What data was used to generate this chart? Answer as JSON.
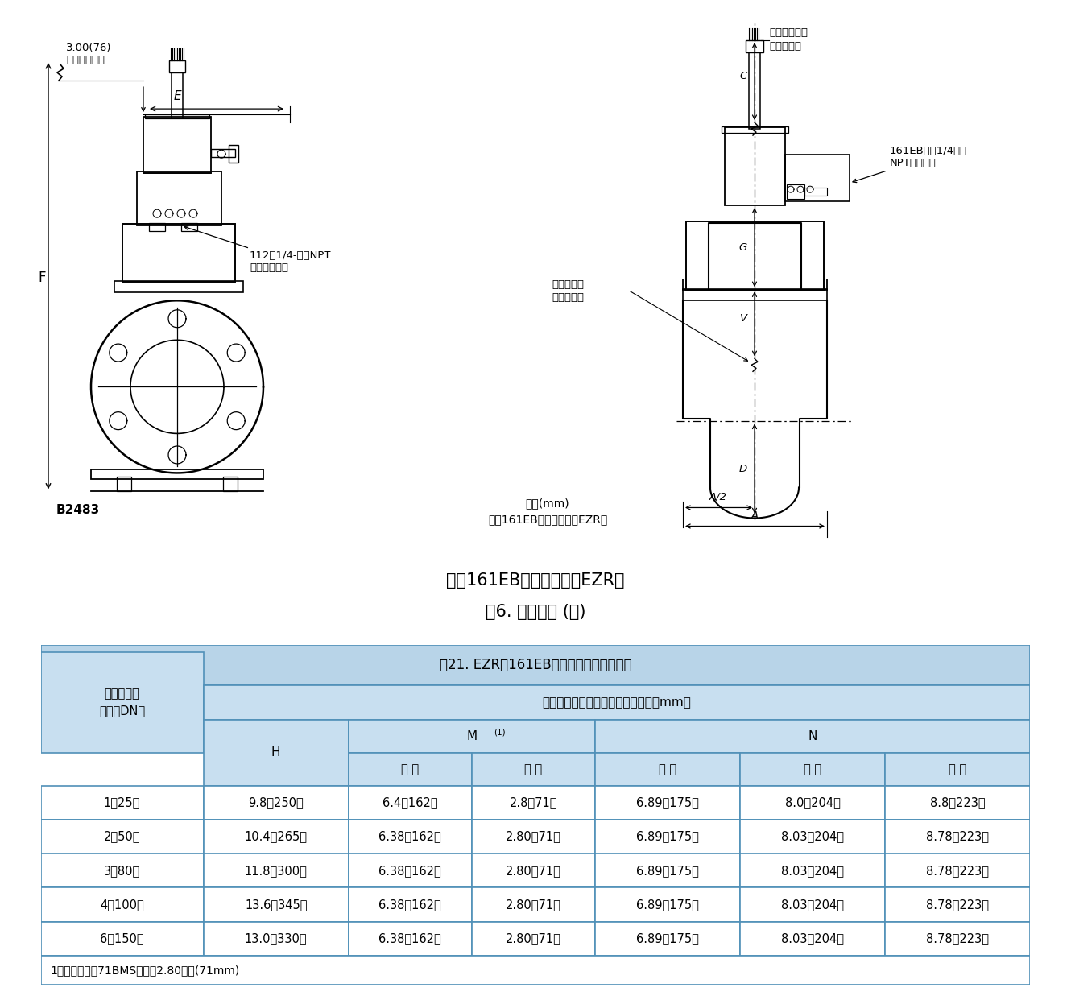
{
  "title1": "带有161EB系列指挥器的EZR型",
  "title2": "图6. 外形尺寸 (续)",
  "table_title": "表21. EZR型161EB系列指挥器的外形尺寸",
  "col_header1": "带有快速关闭阀的外形尺寸，英寸（mm）",
  "col_left_line1": "阀体尺寸，",
  "col_left_line2": "英寸（DN）",
  "col_H": "H",
  "col_M": "M",
  "col_M_sup": "(1)",
  "col_N": "N",
  "sub_cols": [
    "皮 膜",
    "活 塞",
    "皮 膜",
    "活 塞",
    "风 箱"
  ],
  "rows": [
    [
      "1（25）",
      "9.8（250）",
      "6.4（162）",
      "2.8（71）",
      "6.89（175）",
      "8.0（204）",
      "8.8（223）"
    ],
    [
      "2（50）",
      "10.4（265）",
      "6.38（162）",
      "2.80（71）",
      "6.89（175）",
      "8.03（204）",
      "8.78（223）"
    ],
    [
      "3（80）",
      "11.8（300）",
      "6.38（162）",
      "2.80（71）",
      "6.89（175）",
      "8.03（204）",
      "8.78（223）"
    ],
    [
      "4（100）",
      "13.6（345）",
      "6.38（162）",
      "2.80（71）",
      "6.89（175）",
      "8.03（204）",
      "8.78（223）"
    ],
    [
      "6（150）",
      "13.0（330）",
      "6.38（162）",
      "2.80（71）",
      "6.89（175）",
      "8.03（204）",
      "8.78（223）"
    ]
  ],
  "footnote": "1、带有皮膜的71BMS型具有2.80英寸(71mm)",
  "bg_color": "#c8dff0",
  "header_bg": "#b8d4e8",
  "border_color": "#5090b8",
  "text_color": "#000000",
  "image_bg": "#ffffff",
  "diagram_note1": "英寸(mm)",
  "diagram_note2": "带有161EB系列指挥器的EZR型",
  "label_3_00": "3.00(76)",
  "label_lid": "盖密卸装间隙",
  "label_E": "E",
  "label_F": "F",
  "label_B2483": "B2483",
  "label_112": "112型1/4-英寸NPT\n上游供应连接",
  "label_C": "C",
  "label_stroke": "行程指示器端",
  "label_lid2": "盖卸装间隙",
  "label_161EB": "161EB系列1/4英寸\nNPT下游连接",
  "label_G": "G",
  "label_main_valve1": "主阀调节装",
  "label_main_valve2": "置卸装间隙",
  "label_V": "V",
  "label_D": "D",
  "label_A2": "A/2",
  "label_A": "A"
}
